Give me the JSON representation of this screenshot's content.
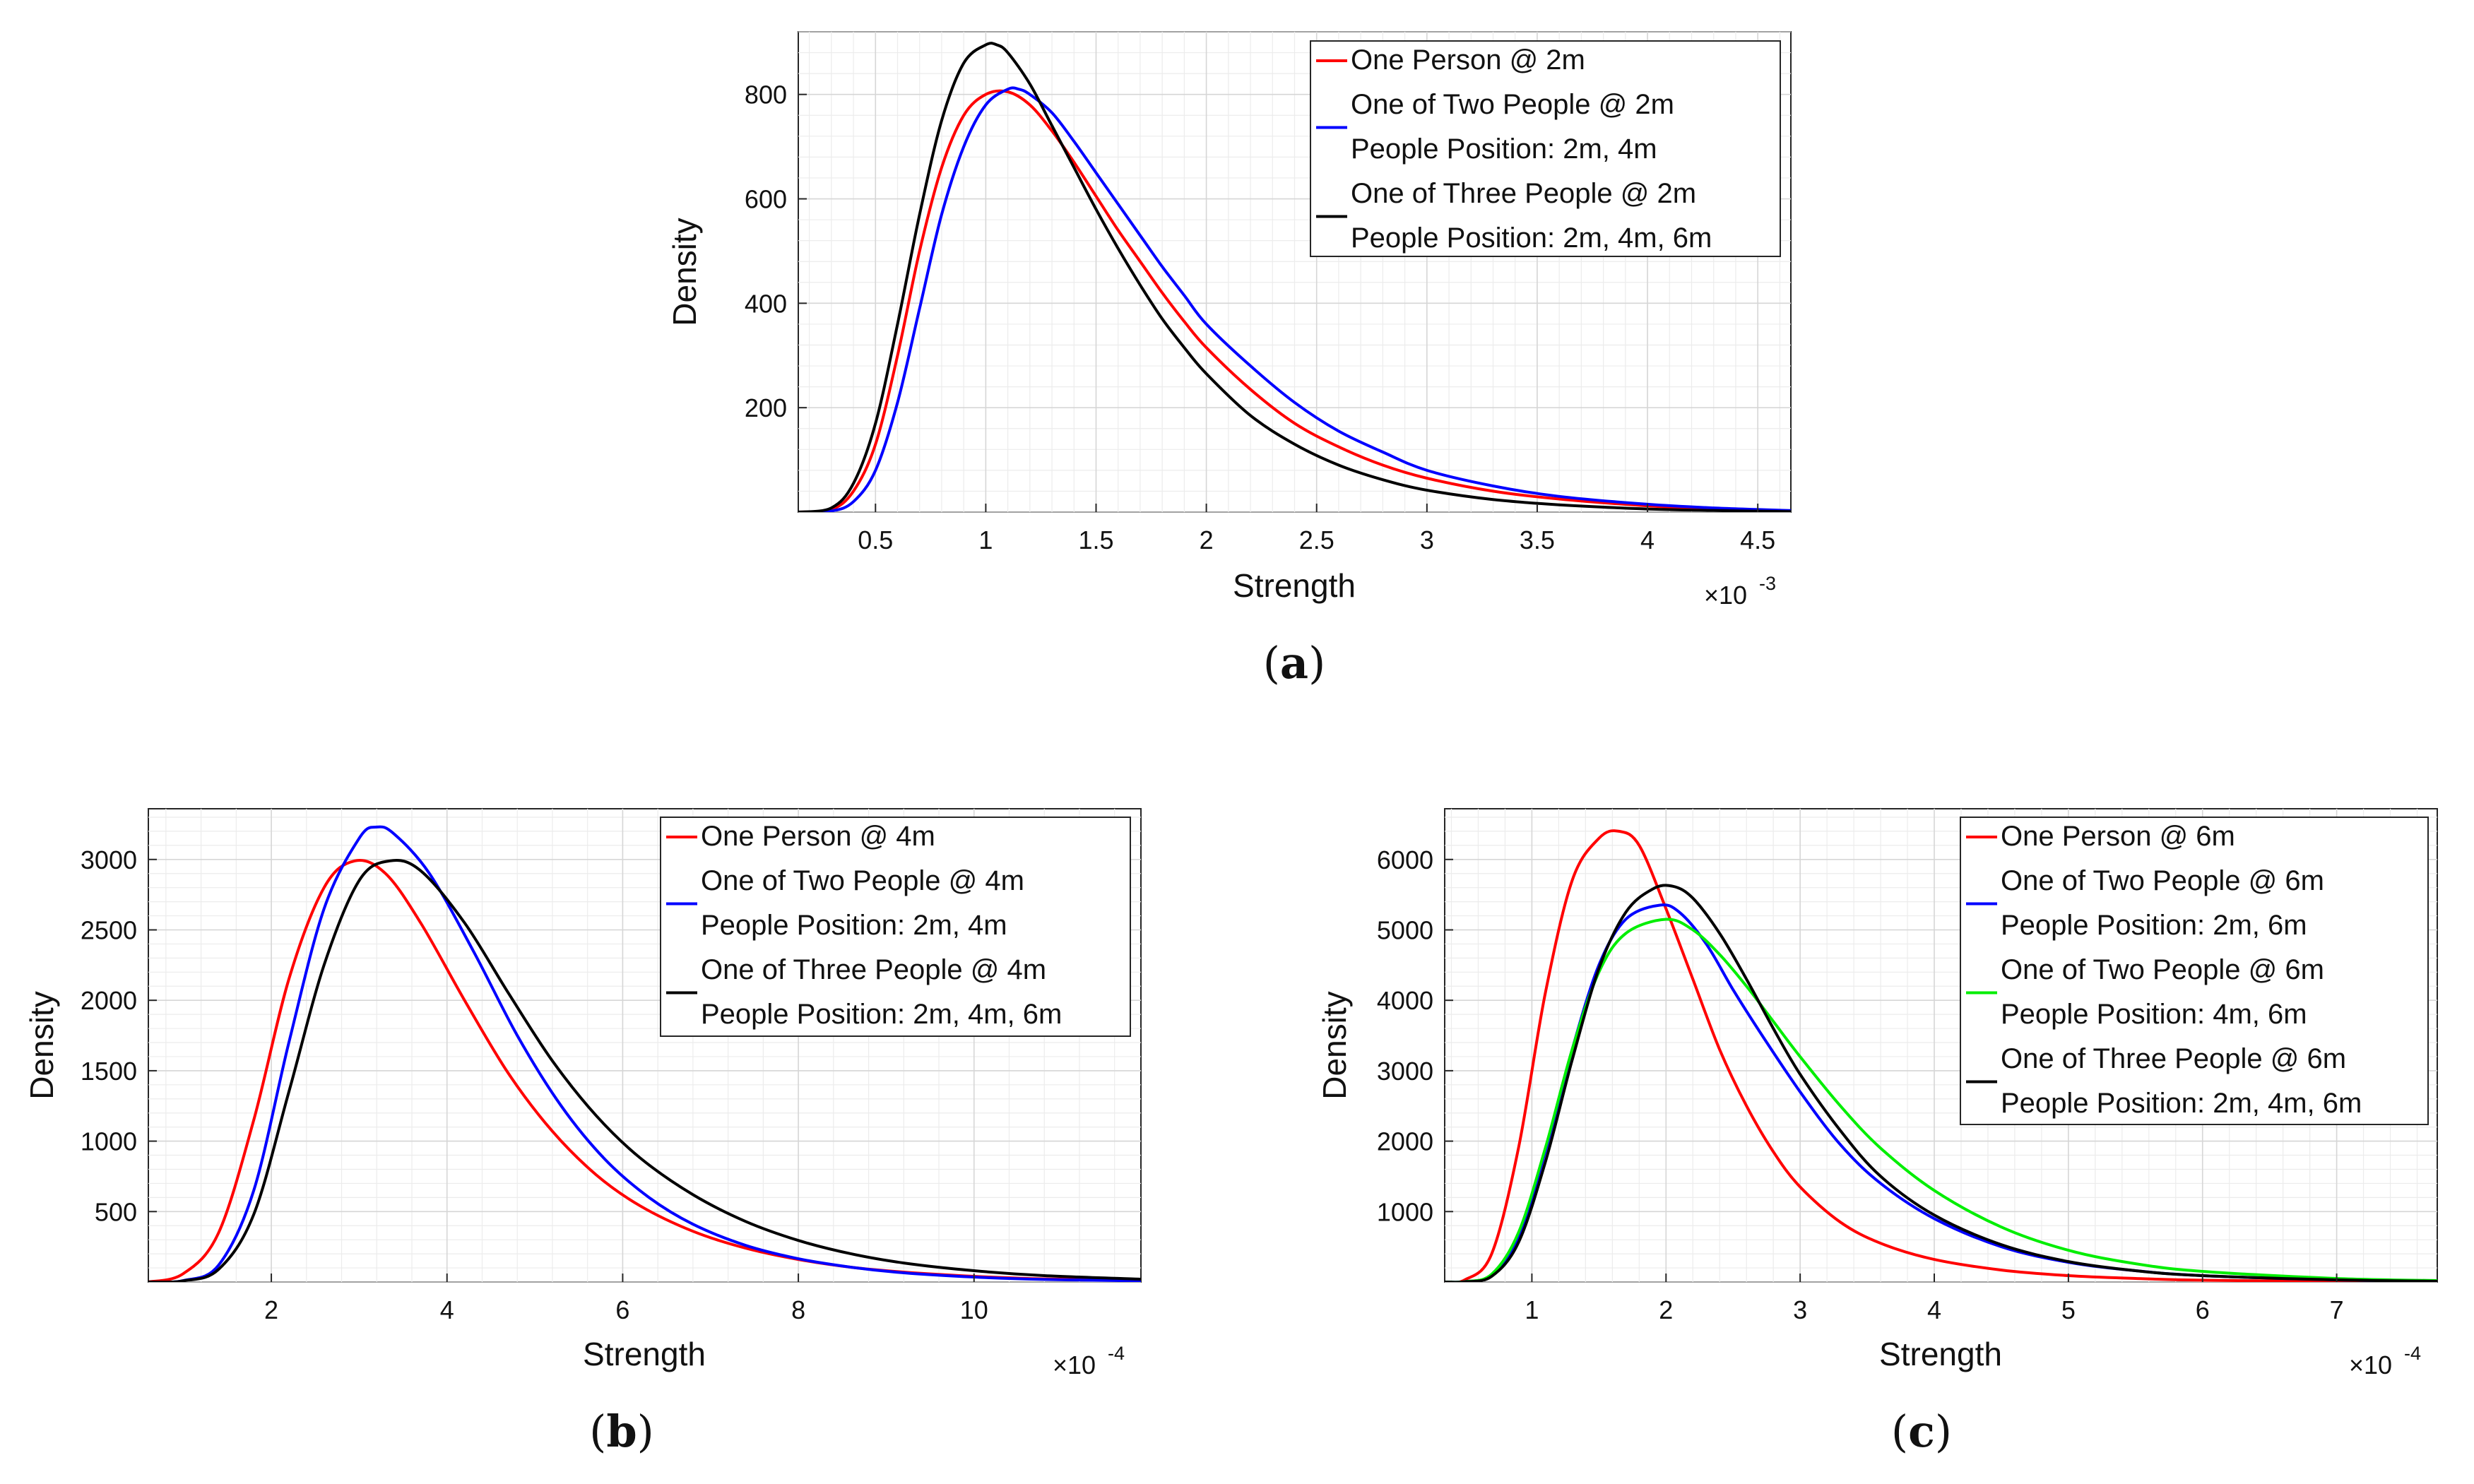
{
  "chart_data": [
    {
      "id": "a",
      "type": "line",
      "caption": "a",
      "xlabel": "Strength",
      "ylabel": "Density",
      "x_multiplier": "×10",
      "x_exponent": "-3",
      "xlim": [
        0.15,
        4.65
      ],
      "ylim": [
        0,
        920
      ],
      "xticks": [
        0.5,
        1,
        1.5,
        2,
        2.5,
        3,
        3.5,
        4,
        4.5
      ],
      "xtick_labels": [
        "0.5",
        "1",
        "1.5",
        "2",
        "2.5",
        "3",
        "3.5",
        "4",
        "4.5"
      ],
      "yticks": [
        200,
        400,
        600,
        800
      ],
      "ytick_labels": [
        "200",
        "400",
        "600",
        "800"
      ],
      "grid": true,
      "legend_position": "top-right",
      "legend": [
        {
          "color": "#ff0000",
          "lines": [
            "One Person @ 2m"
          ]
        },
        {
          "color": "#0000ff",
          "lines": [
            "One of Two People @ 2m",
            "People Position: 2m, 4m"
          ]
        },
        {
          "color": "#000000",
          "lines": [
            "One of Three People @ 2m",
            "People Position: 2m, 4m, 6m"
          ]
        }
      ],
      "series": [
        {
          "name": "One Person @ 2m",
          "color": "#ff0000",
          "x": [
            0.15,
            0.3,
            0.4,
            0.5,
            0.6,
            0.7,
            0.8,
            0.9,
            1.0,
            1.1,
            1.2,
            1.3,
            1.4,
            1.5,
            1.6,
            1.7,
            1.8,
            1.9,
            2.0,
            2.2,
            2.4,
            2.6,
            2.8,
            3.0,
            3.3,
            3.6,
            4.0,
            4.3,
            4.65
          ],
          "y": [
            0,
            5,
            40,
            130,
            300,
            500,
            660,
            760,
            800,
            805,
            780,
            730,
            670,
            605,
            540,
            480,
            420,
            365,
            315,
            235,
            170,
            125,
            90,
            65,
            40,
            25,
            12,
            6,
            2
          ]
        },
        {
          "name": "One of Two People @ 2m",
          "color": "#0000ff",
          "x": [
            0.15,
            0.3,
            0.4,
            0.5,
            0.6,
            0.7,
            0.8,
            0.9,
            1.0,
            1.1,
            1.15,
            1.2,
            1.3,
            1.4,
            1.5,
            1.6,
            1.7,
            1.8,
            1.9,
            2.0,
            2.2,
            2.4,
            2.6,
            2.8,
            3.0,
            3.3,
            3.6,
            4.0,
            4.3,
            4.65
          ],
          "y": [
            0,
            2,
            20,
            80,
            210,
            390,
            570,
            700,
            780,
            810,
            810,
            800,
            765,
            710,
            650,
            590,
            530,
            470,
            415,
            360,
            280,
            210,
            155,
            115,
            80,
            50,
            30,
            15,
            8,
            3
          ]
        },
        {
          "name": "One of Three People @ 2m",
          "color": "#000000",
          "x": [
            0.15,
            0.3,
            0.4,
            0.5,
            0.6,
            0.7,
            0.8,
            0.9,
            1.0,
            1.05,
            1.1,
            1.2,
            1.3,
            1.4,
            1.5,
            1.6,
            1.7,
            1.8,
            1.9,
            2.0,
            2.2,
            2.4,
            2.6,
            2.8,
            3.0,
            3.3,
            3.6,
            4.0,
            4.3,
            4.65
          ],
          "y": [
            0,
            8,
            55,
            170,
            360,
            570,
            750,
            860,
            895,
            895,
            880,
            820,
            740,
            660,
            580,
            505,
            435,
            370,
            315,
            265,
            185,
            130,
            90,
            62,
            42,
            24,
            14,
            6,
            3,
            1
          ]
        }
      ]
    },
    {
      "id": "b",
      "type": "line",
      "caption": "b",
      "xlabel": "Strength",
      "ylabel": "Density",
      "x_multiplier": "×10",
      "x_exponent": "-4",
      "xlim": [
        0.6,
        11.9
      ],
      "ylim": [
        0,
        3360
      ],
      "xticks": [
        2,
        4,
        6,
        8,
        10
      ],
      "xtick_labels": [
        "2",
        "4",
        "6",
        "8",
        "10"
      ],
      "yticks": [
        500,
        1000,
        1500,
        2000,
        2500,
        3000
      ],
      "ytick_labels": [
        "500",
        "1000",
        "1500",
        "2000",
        "2500",
        "3000"
      ],
      "grid": true,
      "legend_position": "top-right",
      "legend": [
        {
          "color": "#ff0000",
          "lines": [
            "One Person @ 4m"
          ]
        },
        {
          "color": "#0000ff",
          "lines": [
            "One of Two People @ 4m",
            "People Position: 2m, 4m"
          ]
        },
        {
          "color": "#000000",
          "lines": [
            "One of Three People @ 4m",
            "People Position: 2m, 4m, 6m"
          ]
        }
      ],
      "series": [
        {
          "name": "One Person @ 4m",
          "color": "#ff0000",
          "x": [
            0.6,
            1.0,
            1.4,
            1.8,
            2.2,
            2.6,
            2.95,
            3.3,
            3.7,
            4.2,
            4.7,
            5.2,
            5.7,
            6.2,
            6.8,
            7.4,
            8.0,
            8.6,
            9.2,
            10.0,
            10.8,
            11.9
          ],
          "y": [
            0,
            60,
            350,
            1150,
            2150,
            2800,
            2990,
            2900,
            2550,
            2000,
            1480,
            1070,
            760,
            540,
            360,
            240,
            160,
            105,
            70,
            40,
            22,
            10
          ]
        },
        {
          "name": "One of Two People @ 4m",
          "color": "#0000ff",
          "x": [
            0.6,
            1.0,
            1.4,
            1.8,
            2.2,
            2.6,
            3.0,
            3.2,
            3.4,
            3.8,
            4.3,
            4.8,
            5.3,
            5.8,
            6.3,
            6.8,
            7.4,
            8.0,
            8.6,
            9.2,
            10.0,
            10.8,
            11.9
          ],
          "y": [
            0,
            10,
            120,
            650,
            1700,
            2650,
            3150,
            3230,
            3180,
            2900,
            2350,
            1750,
            1250,
            870,
            600,
            410,
            260,
            165,
            105,
            65,
            35,
            18,
            8
          ]
        },
        {
          "name": "One of Three People @ 4m",
          "color": "#000000",
          "x": [
            0.6,
            1.0,
            1.4,
            1.8,
            2.2,
            2.6,
            3.0,
            3.35,
            3.7,
            4.2,
            4.7,
            5.2,
            5.7,
            6.2,
            6.8,
            7.4,
            8.0,
            8.6,
            9.2,
            10.0,
            10.8,
            11.9
          ],
          "y": [
            0,
            8,
            90,
            480,
            1350,
            2250,
            2850,
            2990,
            2920,
            2550,
            2050,
            1570,
            1180,
            880,
            620,
            430,
            295,
            200,
            135,
            80,
            45,
            20
          ]
        }
      ]
    },
    {
      "id": "c",
      "type": "line",
      "caption": "c",
      "xlabel": "Strength",
      "ylabel": "Density",
      "x_multiplier": "×10",
      "x_exponent": "-4",
      "xlim": [
        0.35,
        7.75
      ],
      "ylim": [
        0,
        6720
      ],
      "xticks": [
        1,
        2,
        3,
        4,
        5,
        6,
        7
      ],
      "xtick_labels": [
        "1",
        "2",
        "3",
        "4",
        "5",
        "6",
        "7"
      ],
      "yticks": [
        1000,
        2000,
        3000,
        4000,
        5000,
        6000
      ],
      "ytick_labels": [
        "1000",
        "2000",
        "3000",
        "4000",
        "5000",
        "6000"
      ],
      "grid": true,
      "legend_position": "top-right",
      "legend": [
        {
          "color": "#ff0000",
          "lines": [
            "One Person @ 6m"
          ]
        },
        {
          "color": "#0000ff",
          "lines": [
            "One of Two People @ 6m",
            " People Position: 2m, 6m"
          ]
        },
        {
          "color": "#00ee00",
          "lines": [
            "One of Two People @ 6m",
            "People Position: 4m, 6m"
          ]
        },
        {
          "color": "#000000",
          "lines": [
            "One of Three People @ 6m",
            "People Position: 2m, 4m, 6m"
          ]
        }
      ],
      "series": [
        {
          "name": "One Person @ 6m",
          "color": "#ff0000",
          "x": [
            0.35,
            0.5,
            0.7,
            0.9,
            1.1,
            1.3,
            1.5,
            1.65,
            1.8,
            2.0,
            2.2,
            2.4,
            2.6,
            2.8,
            3.0,
            3.3,
            3.6,
            4.0,
            4.5,
            5.0,
            5.5,
            6.0,
            7.0,
            7.75
          ],
          "y": [
            0,
            30,
            400,
            1900,
            4100,
            5700,
            6300,
            6400,
            6200,
            5300,
            4300,
            3300,
            2500,
            1850,
            1350,
            850,
            550,
            320,
            170,
            90,
            50,
            25,
            8,
            3
          ]
        },
        {
          "name": "One of Two People @ 6m (2m, 6m)",
          "color": "#0000ff",
          "x": [
            0.35,
            0.5,
            0.7,
            0.9,
            1.1,
            1.3,
            1.5,
            1.7,
            1.95,
            2.1,
            2.3,
            2.5,
            2.7,
            3.0,
            3.3,
            3.6,
            4.0,
            4.5,
            5.0,
            5.5,
            6.0,
            7.0,
            7.75
          ],
          "y": [
            0,
            5,
            100,
            650,
            1850,
            3300,
            4500,
            5150,
            5350,
            5250,
            4800,
            4150,
            3550,
            2700,
            1950,
            1400,
            900,
            500,
            280,
            160,
            90,
            30,
            10
          ]
        },
        {
          "name": "One of Two People @ 6m (4m, 6m)",
          "color": "#00ee00",
          "x": [
            0.35,
            0.5,
            0.7,
            0.9,
            1.1,
            1.3,
            1.5,
            1.7,
            2.0,
            2.2,
            2.4,
            2.6,
            2.8,
            3.0,
            3.3,
            3.6,
            4.0,
            4.5,
            5.0,
            5.5,
            6.0,
            7.0,
            7.75
          ],
          "y": [
            0,
            5,
            110,
            700,
            1900,
            3300,
            4400,
            4950,
            5150,
            5000,
            4650,
            4200,
            3700,
            3200,
            2500,
            1900,
            1300,
            780,
            450,
            260,
            150,
            50,
            20
          ]
        },
        {
          "name": "One of Three People @ 6m",
          "color": "#000000",
          "x": [
            0.35,
            0.5,
            0.7,
            0.9,
            1.1,
            1.3,
            1.5,
            1.7,
            1.9,
            2.05,
            2.2,
            2.4,
            2.6,
            2.8,
            3.0,
            3.3,
            3.6,
            4.0,
            4.5,
            5.0,
            5.5,
            6.0,
            7.0,
            7.75
          ],
          "y": [
            0,
            3,
            80,
            560,
            1700,
            3150,
            4450,
            5250,
            5580,
            5620,
            5450,
            4950,
            4300,
            3600,
            2950,
            2150,
            1500,
            950,
            530,
            290,
            160,
            90,
            30,
            10
          ]
        }
      ]
    }
  ]
}
